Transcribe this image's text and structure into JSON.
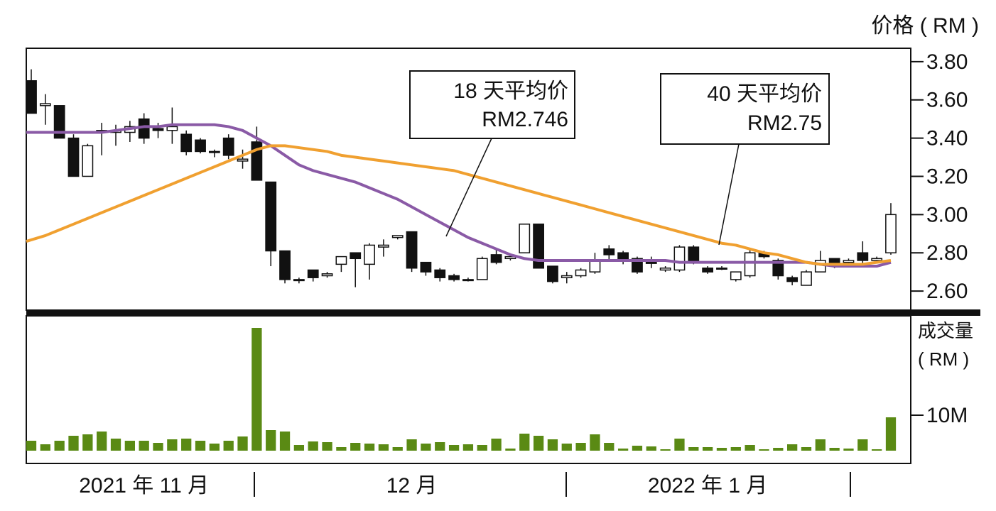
{
  "chart_data": [
    {
      "type": "candlestick",
      "title": "价格 ( RM )",
      "categories": [
        null,
        null,
        null,
        null,
        null,
        null,
        null,
        null,
        "2021 年 11 月",
        null,
        null,
        null,
        null,
        null,
        null,
        null,
        null,
        null,
        null,
        null,
        null,
        null,
        null,
        null,
        null,
        null,
        null,
        "12 月",
        null,
        null,
        null,
        null,
        null,
        null,
        null,
        null,
        null,
        null,
        null,
        null,
        null,
        null,
        null,
        null,
        null,
        null,
        null,
        null,
        "2022 年 1 月",
        null,
        null,
        null,
        null,
        null,
        null,
        null,
        null,
        null,
        null,
        null,
        null,
        null
      ],
      "open": [
        3.7,
        3.57,
        3.57,
        3.4,
        3.2,
        3.43,
        3.43,
        3.43,
        3.5,
        3.45,
        3.44,
        3.42,
        3.39,
        3.33,
        3.4,
        3.28,
        3.38,
        3.17,
        2.81,
        2.66,
        2.71,
        2.68,
        2.74,
        2.8,
        2.74,
        2.83,
        2.88,
        2.91,
        2.75,
        2.71,
        2.68,
        2.66,
        2.66,
        2.79,
        2.77,
        2.8,
        2.95,
        2.73,
        2.67,
        2.68,
        2.7,
        2.82,
        2.8,
        2.77,
        2.75,
        2.71,
        2.71,
        2.83,
        2.72,
        2.72,
        2.66,
        2.68,
        2.8,
        2.76,
        2.67,
        2.63,
        2.7,
        2.77,
        2.75,
        2.8,
        2.76,
        2.8
      ],
      "close": [
        3.53,
        3.58,
        3.4,
        3.2,
        3.36,
        3.44,
        3.44,
        3.46,
        3.4,
        3.44,
        3.46,
        3.33,
        3.33,
        3.33,
        3.31,
        3.29,
        3.18,
        2.81,
        2.66,
        2.66,
        2.67,
        2.69,
        2.78,
        2.77,
        2.84,
        2.84,
        2.89,
        2.72,
        2.7,
        2.67,
        2.66,
        2.66,
        2.77,
        2.75,
        2.78,
        2.95,
        2.72,
        2.65,
        2.68,
        2.71,
        2.76,
        2.79,
        2.77,
        2.7,
        2.75,
        2.72,
        2.83,
        2.75,
        2.7,
        2.72,
        2.7,
        2.8,
        2.78,
        2.68,
        2.65,
        2.7,
        2.76,
        2.74,
        2.76,
        2.76,
        2.77,
        3.0
      ],
      "high": [
        3.76,
        3.63,
        3.57,
        3.42,
        3.37,
        3.48,
        3.47,
        3.49,
        3.53,
        3.48,
        3.56,
        3.44,
        3.4,
        3.34,
        3.42,
        3.34,
        3.46,
        3.17,
        2.81,
        2.67,
        2.71,
        2.7,
        2.78,
        2.8,
        2.85,
        2.87,
        2.89,
        2.91,
        2.75,
        2.72,
        2.69,
        2.67,
        2.78,
        2.82,
        2.79,
        2.95,
        2.95,
        2.73,
        2.7,
        2.72,
        2.8,
        2.84,
        2.81,
        2.78,
        2.78,
        2.73,
        2.84,
        2.84,
        2.73,
        2.73,
        2.7,
        2.82,
        2.81,
        2.77,
        2.68,
        2.71,
        2.81,
        2.77,
        2.77,
        2.86,
        2.78,
        3.06
      ],
      "low": [
        3.53,
        3.47,
        3.4,
        3.2,
        3.2,
        3.31,
        3.36,
        3.38,
        3.37,
        3.4,
        3.37,
        3.31,
        3.32,
        3.3,
        3.29,
        3.24,
        3.18,
        2.73,
        2.64,
        2.64,
        2.65,
        2.67,
        2.7,
        2.62,
        2.66,
        2.78,
        2.87,
        2.7,
        2.68,
        2.65,
        2.65,
        2.65,
        2.66,
        2.74,
        2.76,
        2.8,
        2.72,
        2.64,
        2.64,
        2.67,
        2.69,
        2.76,
        2.74,
        2.69,
        2.72,
        2.7,
        2.7,
        2.74,
        2.69,
        2.71,
        2.65,
        2.67,
        2.77,
        2.66,
        2.63,
        2.63,
        2.7,
        2.72,
        2.74,
        2.74,
        2.75,
        2.79
      ],
      "series": [
        {
          "name": "18 天平均价",
          "label": "RM2.746",
          "color": "#8a5aa6",
          "values": [
            3.43,
            3.43,
            3.43,
            3.43,
            3.43,
            3.43,
            3.44,
            3.45,
            3.46,
            3.46,
            3.47,
            3.47,
            3.47,
            3.47,
            3.46,
            3.44,
            3.4,
            3.36,
            3.31,
            3.26,
            3.23,
            3.21,
            3.19,
            3.17,
            3.14,
            3.11,
            3.08,
            3.04,
            3.0,
            2.96,
            2.92,
            2.88,
            2.85,
            2.82,
            2.79,
            2.77,
            2.76,
            2.76,
            2.76,
            2.76,
            2.76,
            2.76,
            2.76,
            2.76,
            2.76,
            2.76,
            2.75,
            2.75,
            2.75,
            2.75,
            2.75,
            2.75,
            2.75,
            2.75,
            2.75,
            2.75,
            2.74,
            2.73,
            2.73,
            2.73,
            2.73,
            2.75
          ]
        },
        {
          "name": "40 天平均价",
          "label": "RM2.75",
          "color": "#f0a030",
          "values": [
            2.86,
            2.89,
            2.92,
            2.95,
            2.98,
            3.01,
            3.04,
            3.07,
            3.1,
            3.13,
            3.16,
            3.19,
            3.22,
            3.25,
            3.28,
            3.31,
            3.34,
            3.36,
            3.36,
            3.35,
            3.34,
            3.33,
            3.31,
            3.3,
            3.29,
            3.28,
            3.27,
            3.26,
            3.25,
            3.24,
            3.23,
            3.21,
            3.19,
            3.17,
            3.15,
            3.13,
            3.11,
            3.09,
            3.07,
            3.05,
            3.03,
            3.01,
            2.99,
            2.97,
            2.95,
            2.93,
            2.91,
            2.89,
            2.87,
            2.85,
            2.84,
            2.82,
            2.8,
            2.79,
            2.77,
            2.75,
            2.74,
            2.74,
            2.74,
            2.74,
            2.75,
            2.76
          ]
        }
      ],
      "ylim": [
        2.5,
        3.87
      ],
      "yticks": [
        {
          "value": 3.8,
          "label": "3.80"
        },
        {
          "value": 3.6,
          "label": "3.60"
        },
        {
          "value": 3.4,
          "label": "3.40"
        },
        {
          "value": 3.2,
          "label": "3.20"
        },
        {
          "value": 3.0,
          "label": "3.00"
        },
        {
          "value": 2.8,
          "label": "2.80"
        },
        {
          "value": 2.6,
          "label": "2.60"
        }
      ]
    },
    {
      "type": "bar",
      "title": "成交量",
      "subtitle": "( RM )",
      "color": "#5a8a14",
      "values": [
        2.8,
        1.8,
        2.8,
        4.2,
        4.6,
        5.4,
        3.4,
        2.8,
        2.8,
        2.2,
        3.2,
        3.4,
        2.8,
        2,
        2.8,
        4,
        34.6,
        5.8,
        5.4,
        1.6,
        2.6,
        2.4,
        1,
        2.2,
        2,
        1.8,
        1,
        3.2,
        2,
        2.4,
        1.6,
        1.8,
        1.6,
        3.4,
        0.6,
        4.8,
        4.2,
        3.2,
        2,
        2.2,
        4.6,
        2.2,
        0.6,
        1.4,
        1.2,
        0.4,
        3.4,
        1,
        1,
        0.8,
        1,
        1.6,
        0.4,
        0.8,
        1.8,
        1,
        3.2,
        0.8,
        0.6,
        3.2,
        0.4,
        9.4
      ],
      "ylim": [
        -3.6,
        38
      ],
      "yticks": [
        {
          "value": 10,
          "label": "10M"
        }
      ]
    }
  ]
}
